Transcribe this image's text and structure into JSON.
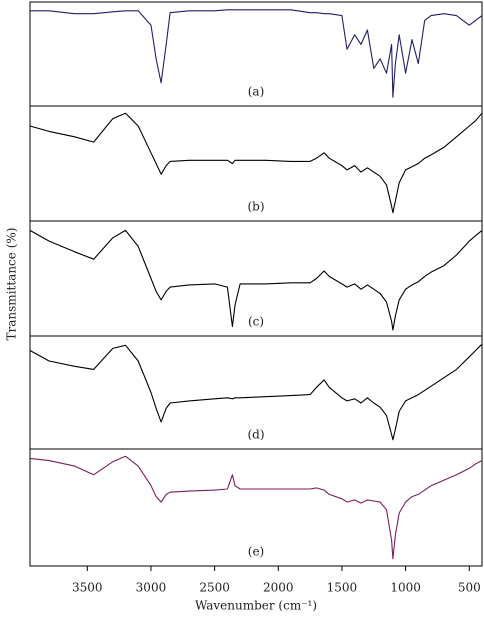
{
  "chart_data": [
    {
      "type": "line",
      "panel_label": "(a)",
      "ylabel": "Transmittance (%)",
      "color": "#1f1f6b",
      "xlim": [
        3950,
        400
      ],
      "ylim": [
        0,
        100
      ],
      "x": [
        3950,
        3800,
        3600,
        3450,
        3300,
        3200,
        3100,
        3000,
        2960,
        2920,
        2880,
        2850,
        2700,
        2500,
        2400,
        2360,
        2340,
        2300,
        2100,
        1900,
        1750,
        1700,
        1640,
        1600,
        1500,
        1460,
        1400,
        1350,
        1300,
        1250,
        1200,
        1150,
        1110,
        1100,
        1080,
        1050,
        1000,
        950,
        900,
        850,
        800,
        700,
        600,
        500,
        450,
        400
      ],
      "values": [
        95,
        95,
        92,
        92,
        94,
        95,
        95,
        80,
        45,
        20,
        60,
        93,
        95,
        95,
        96,
        96,
        96,
        96,
        96,
        96,
        93,
        93,
        92,
        92,
        90,
        55,
        70,
        60,
        75,
        35,
        45,
        30,
        60,
        5,
        40,
        70,
        30,
        65,
        40,
        85,
        90,
        92,
        90,
        80,
        85,
        90
      ]
    },
    {
      "type": "line",
      "panel_label": "(b)",
      "color": "#000000",
      "xlim": [
        3950,
        400
      ],
      "ylim": [
        0,
        100
      ],
      "x": [
        3950,
        3800,
        3600,
        3450,
        3300,
        3200,
        3100,
        3000,
        2960,
        2920,
        2880,
        2850,
        2700,
        2500,
        2400,
        2360,
        2340,
        2300,
        2100,
        1900,
        1750,
        1700,
        1640,
        1600,
        1500,
        1460,
        1400,
        1350,
        1300,
        1250,
        1200,
        1150,
        1110,
        1100,
        1080,
        1050,
        1000,
        950,
        900,
        850,
        800,
        700,
        600,
        500,
        450,
        400
      ],
      "values": [
        85,
        80,
        75,
        70,
        92,
        97,
        85,
        60,
        50,
        40,
        48,
        52,
        53,
        53,
        53,
        50,
        53,
        53,
        53,
        52,
        52,
        55,
        60,
        55,
        48,
        44,
        48,
        42,
        46,
        42,
        38,
        30,
        10,
        4,
        15,
        32,
        44,
        47,
        50,
        55,
        58,
        65,
        75,
        85,
        90,
        97
      ]
    },
    {
      "type": "line",
      "panel_label": "(c)",
      "color": "#000000",
      "xlim": [
        3950,
        400
      ],
      "ylim": [
        0,
        100
      ],
      "x": [
        3950,
        3800,
        3600,
        3450,
        3300,
        3200,
        3100,
        3000,
        2960,
        2920,
        2880,
        2850,
        2700,
        2500,
        2400,
        2360,
        2340,
        2300,
        2100,
        1900,
        1750,
        1700,
        1640,
        1600,
        1500,
        1460,
        1400,
        1350,
        1300,
        1250,
        1200,
        1150,
        1110,
        1100,
        1080,
        1050,
        1000,
        950,
        900,
        850,
        800,
        700,
        600,
        500,
        450,
        400
      ],
      "values": [
        95,
        85,
        75,
        68,
        88,
        95,
        80,
        50,
        38,
        30,
        38,
        42,
        44,
        45,
        42,
        5,
        25,
        45,
        45,
        46,
        46,
        50,
        57,
        52,
        45,
        42,
        45,
        40,
        44,
        40,
        36,
        28,
        10,
        2,
        15,
        30,
        40,
        44,
        47,
        52,
        56,
        62,
        72,
        85,
        90,
        95
      ]
    },
    {
      "type": "line",
      "panel_label": "(d)",
      "color": "#000000",
      "xlim": [
        3950,
        400
      ],
      "ylim": [
        0,
        100
      ],
      "x": [
        3950,
        3800,
        3600,
        3450,
        3300,
        3200,
        3100,
        3000,
        2960,
        2920,
        2880,
        2850,
        2700,
        2500,
        2400,
        2360,
        2340,
        2300,
        2100,
        1900,
        1750,
        1700,
        1640,
        1600,
        1500,
        1460,
        1400,
        1350,
        1300,
        1250,
        1200,
        1150,
        1110,
        1100,
        1080,
        1050,
        1000,
        950,
        900,
        850,
        800,
        700,
        600,
        500,
        450,
        400
      ],
      "values": [
        90,
        80,
        75,
        72,
        92,
        95,
        80,
        50,
        35,
        22,
        35,
        40,
        42,
        44,
        45,
        44,
        45,
        45,
        46,
        47,
        48,
        55,
        62,
        55,
        45,
        42,
        44,
        40,
        45,
        40,
        36,
        28,
        10,
        5,
        15,
        32,
        42,
        45,
        48,
        52,
        56,
        64,
        72,
        84,
        90,
        96
      ]
    },
    {
      "type": "line",
      "panel_label": "(e)",
      "color": "#7a1f5e",
      "xlim": [
        3950,
        400
      ],
      "ylim": [
        0,
        100
      ],
      "xlabel": "Wavenumber (cm⁻¹)",
      "xticks": [
        3500,
        3000,
        2500,
        2000,
        1500,
        1000,
        500
      ],
      "x": [
        3950,
        3800,
        3600,
        3450,
        3300,
        3200,
        3100,
        3000,
        2960,
        2920,
        2880,
        2850,
        2700,
        2500,
        2400,
        2360,
        2340,
        2300,
        2100,
        1900,
        1750,
        1700,
        1640,
        1600,
        1500,
        1460,
        1400,
        1350,
        1300,
        1250,
        1200,
        1150,
        1110,
        1100,
        1080,
        1050,
        1000,
        950,
        900,
        850,
        800,
        700,
        600,
        500,
        450,
        400
      ],
      "values": [
        95,
        93,
        88,
        80,
        92,
        97,
        88,
        70,
        60,
        55,
        62,
        64,
        65,
        66,
        67,
        80,
        70,
        67,
        67,
        67,
        67,
        68,
        66,
        62,
        58,
        55,
        57,
        54,
        57,
        56,
        55,
        48,
        20,
        3,
        25,
        45,
        55,
        60,
        62,
        66,
        70,
        75,
        80,
        86,
        90,
        93
      ]
    }
  ]
}
